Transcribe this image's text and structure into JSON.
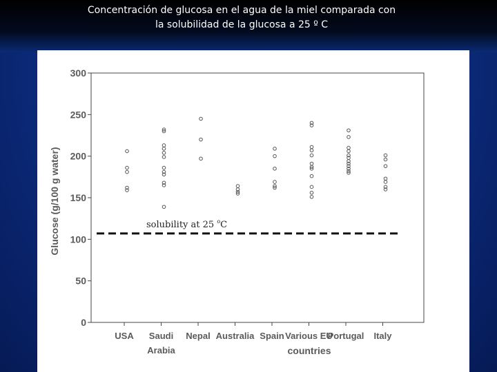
{
  "slide": {
    "title_line1": "Concentración de glucosa en el agua de la miel comparada con",
    "title_line2": "la solubilidad de la glucosa a 25 º C"
  },
  "colors": {
    "background_blue": "#0d2f86",
    "title_text": "#ffffff",
    "panel": "#ffffff",
    "marker": "#555555",
    "axis": "#444444"
  },
  "chart_data": {
    "type": "scatter",
    "ylabel": "Glucose (g/100 g water)",
    "xlabel": "countries",
    "ylim": [
      0,
      300
    ],
    "yticks": [
      0,
      50,
      100,
      150,
      200,
      250,
      300
    ],
    "ytick_labels": [
      "0",
      "50",
      "100",
      "150",
      "200",
      "250",
      "300"
    ],
    "categories": [
      "USA",
      "Saudi Arabia",
      "Nepal",
      "Australia",
      "Spain",
      "Various EU",
      "Portugal",
      "Italy"
    ],
    "category_label_lines": [
      [
        "USA"
      ],
      [
        "Saudi",
        "Arabia"
      ],
      [
        "Nepal"
      ],
      [
        "Australia"
      ],
      [
        "Spain"
      ],
      [
        "Various EU"
      ],
      [
        "Portugal"
      ],
      [
        "Italy"
      ]
    ],
    "points": [
      [
        206,
        186,
        181,
        162,
        159
      ],
      [
        232,
        230,
        213,
        209,
        204,
        199,
        186,
        181,
        178,
        168,
        165,
        139
      ],
      [
        245,
        220,
        197
      ],
      [
        164,
        160,
        157,
        155
      ],
      [
        209,
        200,
        185,
        169,
        164,
        162
      ],
      [
        240,
        237,
        211,
        207,
        201,
        191,
        187,
        185,
        176,
        163,
        156,
        151
      ],
      [
        231,
        223,
        210,
        206,
        201,
        198,
        194,
        191,
        188,
        185,
        182,
        180
      ],
      [
        201,
        196,
        188,
        173,
        169,
        163,
        160
      ]
    ],
    "reference_line": {
      "y": 107,
      "style": "dashed",
      "label": "solubility at 25 ",
      "label_degree": "o",
      "label_unit": "C"
    },
    "grid": false,
    "legend": "none"
  }
}
